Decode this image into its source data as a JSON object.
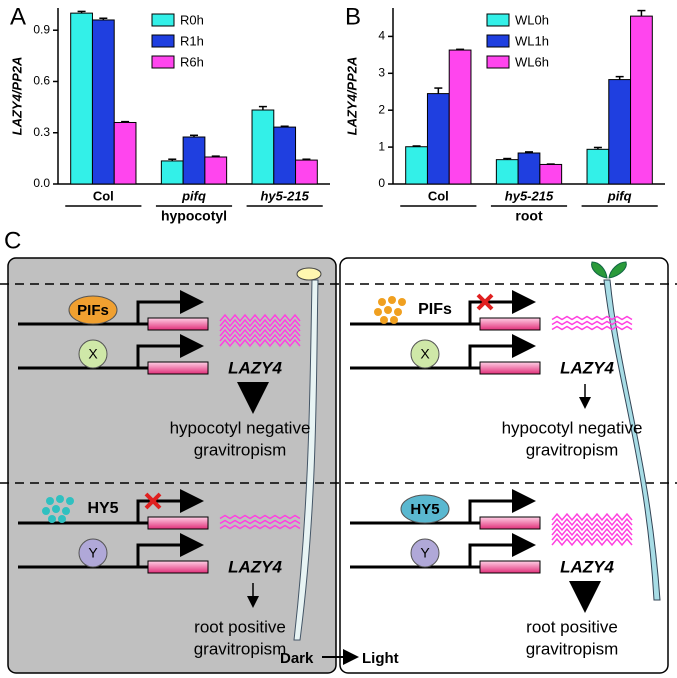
{
  "chart_data": [
    {
      "type": "bar",
      "panel": "A",
      "ylabel": "LAZY4/PP2A",
      "xlabel": "hypocotyl",
      "categories": [
        "Col",
        "pifq",
        "hy5-215"
      ],
      "series": [
        {
          "name": "R0h",
          "color": "#33f0e8",
          "values": [
            1.0,
            0.135,
            0.433
          ],
          "errors": [
            0.01,
            0.01,
            0.02
          ]
        },
        {
          "name": "R1h",
          "color": "#1f3fe0",
          "values": [
            0.96,
            0.275,
            0.333
          ],
          "errors": [
            0.01,
            0.01,
            0.005
          ]
        },
        {
          "name": "R6h",
          "color": "#ff45ee",
          "values": [
            0.36,
            0.158,
            0.14
          ],
          "errors": [
            0.005,
            0.005,
            0.005
          ]
        }
      ],
      "ylim": [
        0,
        1.03
      ],
      "yticks": [
        {
          "value": 0,
          "label": "0.0"
        },
        0.3,
        0.6,
        0.9
      ]
    },
    {
      "type": "bar",
      "panel": "B",
      "ylabel": "LAZY4/PP2A",
      "xlabel": "root",
      "categories": [
        "Col",
        "hy5-215",
        "pifq"
      ],
      "series": [
        {
          "name": "WL0h",
          "color": "#33f0e8",
          "values": [
            1.01,
            0.66,
            0.94
          ],
          "errors": [
            0.02,
            0.03,
            0.05
          ]
        },
        {
          "name": "WL1h",
          "color": "#1f3fe0",
          "values": [
            2.45,
            0.84,
            2.83
          ],
          "errors": [
            0.15,
            0.03,
            0.08
          ]
        },
        {
          "name": "WL6h",
          "color": "#ff45ee",
          "values": [
            3.63,
            0.53,
            4.55
          ],
          "errors": [
            0.02,
            0.01,
            0.15
          ]
        }
      ],
      "ylim": [
        0,
        4.77
      ],
      "yticks": [
        0,
        1,
        2,
        3,
        4
      ]
    }
  ],
  "diagram": {
    "panel": "C",
    "quadrants": [
      {
        "factors": [
          "PIFs",
          "X"
        ],
        "gene": "LAZY4",
        "outcome": [
          "hypocotyl negative",
          "gravitropism"
        ]
      },
      {
        "factors": [
          "HY5",
          "Y"
        ],
        "gene": "LAZY4",
        "outcome": [
          "root positive",
          "gravitropism"
        ]
      },
      {
        "factors": [
          "PIFs",
          "X"
        ],
        "gene": "LAZY4",
        "outcome": [
          "hypocotyl negative",
          "gravitropism"
        ]
      },
      {
        "factors": [
          "HY5",
          "Y"
        ],
        "gene": "LAZY4",
        "outcome": [
          "root positive",
          "gravitropism"
        ]
      }
    ],
    "transition": [
      "Dark",
      "Light"
    ]
  }
}
